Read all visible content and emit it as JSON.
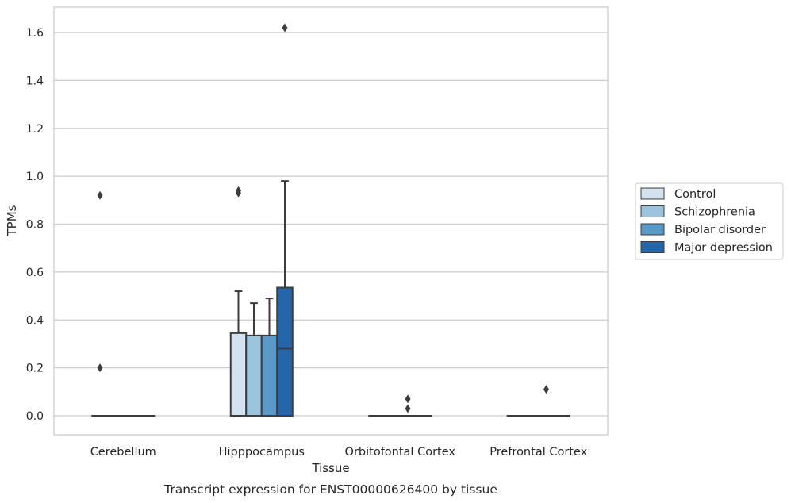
{
  "chart_data": {
    "type": "box",
    "caption": "Transcript expression for ENST00000626400 by tissue",
    "xlabel": "Tissue",
    "ylabel": "TPMs",
    "ylim": [
      -0.08,
      1.7
    ],
    "yticks": [
      0.0,
      0.2,
      0.4,
      0.6,
      0.8,
      1.0,
      1.2,
      1.4,
      1.6
    ],
    "ytick_labels": [
      "0.0",
      "0.2",
      "0.4",
      "0.6",
      "0.8",
      "1.0",
      "1.2",
      "1.4",
      "1.6"
    ],
    "grid": true,
    "legend_position": "right",
    "categories": [
      "Cerebellum",
      "Hipppocampus",
      "Orbitofontal Cortex",
      "Prefrontal Cortex"
    ],
    "series": [
      {
        "name": "Control",
        "color": "#d4e1ef",
        "boxes": [
          {
            "q1": 0,
            "median": 0,
            "q3": 0,
            "whisker_low": 0,
            "whisker_high": 0,
            "outliers": [
              0.2,
              0.92
            ]
          },
          {
            "q1": 0,
            "median": 0,
            "q3": 0.345,
            "whisker_low": 0,
            "whisker_high": 0.52,
            "outliers": [
              0.93,
              0.94
            ]
          },
          {
            "q1": 0,
            "median": 0,
            "q3": 0,
            "whisker_low": 0,
            "whisker_high": 0,
            "outliers": []
          },
          {
            "q1": 0,
            "median": 0,
            "q3": 0,
            "whisker_low": 0,
            "whisker_high": 0,
            "outliers": []
          }
        ]
      },
      {
        "name": "Schizophrenia",
        "color": "#9ac3dc",
        "boxes": [
          {
            "q1": 0,
            "median": 0,
            "q3": 0,
            "whisker_low": 0,
            "whisker_high": 0,
            "outliers": []
          },
          {
            "q1": 0,
            "median": 0,
            "q3": 0.335,
            "whisker_low": 0,
            "whisker_high": 0.47,
            "outliers": []
          },
          {
            "q1": 0,
            "median": 0,
            "q3": 0,
            "whisker_low": 0,
            "whisker_high": 0,
            "outliers": []
          },
          {
            "q1": 0,
            "median": 0,
            "q3": 0,
            "whisker_low": 0,
            "whisker_high": 0,
            "outliers": []
          }
        ]
      },
      {
        "name": "Bipolar disorder",
        "color": "#5a9ac8",
        "boxes": [
          {
            "q1": 0,
            "median": 0,
            "q3": 0,
            "whisker_low": 0,
            "whisker_high": 0,
            "outliers": []
          },
          {
            "q1": 0,
            "median": 0,
            "q3": 0.335,
            "whisker_low": 0,
            "whisker_high": 0.49,
            "outliers": []
          },
          {
            "q1": 0,
            "median": 0,
            "q3": 0,
            "whisker_low": 0,
            "whisker_high": 0,
            "outliers": [
              0.03,
              0.07
            ]
          },
          {
            "q1": 0,
            "median": 0,
            "q3": 0,
            "whisker_low": 0,
            "whisker_high": 0,
            "outliers": [
              0.11
            ]
          }
        ]
      },
      {
        "name": "Major depression",
        "color": "#2566a8",
        "boxes": [
          {
            "q1": 0,
            "median": 0,
            "q3": 0,
            "whisker_low": 0,
            "whisker_high": 0,
            "outliers": []
          },
          {
            "q1": 0,
            "median": 0.28,
            "q3": 0.535,
            "whisker_low": 0,
            "whisker_high": 0.98,
            "outliers": [
              1.62
            ]
          },
          {
            "q1": 0,
            "median": 0,
            "q3": 0,
            "whisker_low": 0,
            "whisker_high": 0,
            "outliers": []
          },
          {
            "q1": 0,
            "median": 0,
            "q3": 0,
            "whisker_low": 0,
            "whisker_high": 0,
            "outliers": []
          }
        ]
      }
    ]
  }
}
